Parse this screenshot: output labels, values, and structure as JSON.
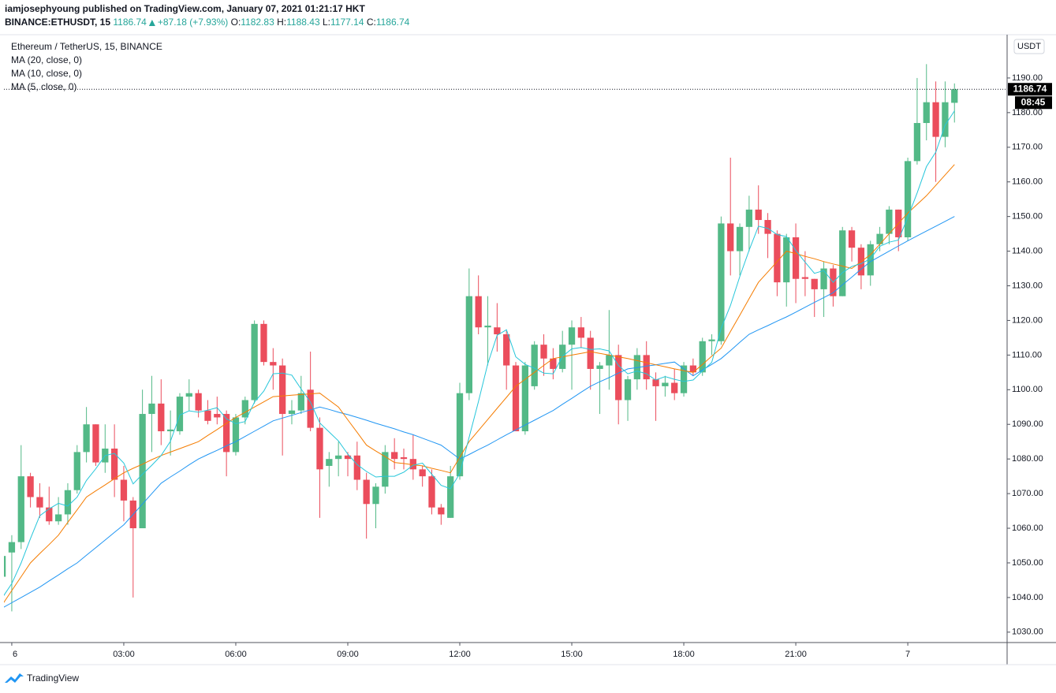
{
  "header": {
    "byline": "iamjosephyoung published on TradingView.com, January 07, 2021 01:21:17 HKT",
    "symbol": "BINANCE:ETHUSDT, 15",
    "change": "+87.18 (+7.93%)",
    "ohlc_labels": [
      "O:",
      "H:",
      "L:",
      "C:"
    ]
  },
  "footer": {
    "brand": "TradingView"
  },
  "chart_data": {
    "type": "candlestick",
    "title": "Ethereum / TetherUS, 15, BINANCE",
    "currency": "USDT",
    "countdown": "08:45",
    "up_color": "#53b987",
    "down_color": "#eb4d5c",
    "grid": false,
    "x": [
      -0.25,
      0,
      0.25,
      0.5,
      0.75,
      1,
      1.25,
      1.5,
      1.75,
      2,
      2.25,
      2.5,
      2.75,
      3,
      3.25,
      3.5,
      3.75,
      4,
      4.25,
      4.5,
      4.75,
      5,
      5.25,
      5.5,
      5.75,
      6,
      6.25,
      6.5,
      6.75,
      7,
      7.25,
      7.5,
      7.75,
      8,
      8.25,
      8.5,
      8.75,
      9,
      9.25,
      9.5,
      9.75,
      10,
      10.25,
      10.5,
      10.75,
      11,
      11.25,
      11.5,
      11.75,
      12,
      12.25,
      12.5,
      12.75,
      13,
      13.25,
      13.5,
      13.75,
      14,
      14.25,
      14.5,
      14.75,
      15,
      15.25,
      15.5,
      15.75,
      16,
      16.25,
      16.5,
      16.75,
      17,
      17.25,
      17.5,
      17.75,
      18,
      18.25,
      18.5,
      18.75,
      19,
      19.25,
      19.5,
      19.75,
      20,
      20.25,
      20.5,
      20.75,
      21,
      21.25,
      21.5,
      21.75,
      22,
      22.25,
      22.5,
      22.75,
      23,
      23.25,
      23.5,
      23.75,
      24,
      24.25,
      24.5,
      24.75,
      25,
      25.25
    ],
    "open": [
      1046,
      1053,
      1056,
      1075,
      1069,
      1066,
      1062,
      1064,
      1071,
      1082,
      1090,
      1079,
      1083,
      1074,
      1068,
      1060,
      1093,
      1096,
      1088,
      1088,
      1098,
      1099,
      1094,
      1093,
      1093,
      1082,
      1092,
      1097,
      1119,
      1108,
      1107,
      1093,
      1094,
      1100,
      1089,
      1078,
      1080,
      1081,
      1081,
      1074,
      1067,
      1072,
      1082,
      1080.5,
      1080,
      1077,
      1075,
      1066,
      1063,
      1075,
      1099,
      1127,
      1118,
      1118,
      1116,
      1107,
      1088,
      1101,
      1113,
      1109,
      1106,
      1113,
      1118,
      1115,
      1106,
      1107,
      1110,
      1097,
      1103,
      1110,
      1103,
      1101,
      1102,
      1099,
      1107,
      1105,
      1114,
      1114,
      1148,
      1140,
      1147,
      1152,
      1149,
      1145,
      1131,
      1144,
      1132.5,
      1132,
      1129,
      1135,
      1127,
      1146,
      1141,
      1133,
      1142,
      1145,
      1152,
      1144,
      1166,
      1177,
      1183,
      1173,
      1182.83
    ],
    "high": [
      1054,
      1058,
      1084,
      1076,
      1073,
      1072,
      1069,
      1073,
      1084,
      1095,
      1090,
      1090,
      1090,
      1078,
      1069,
      1100,
      1104,
      1103,
      1094,
      1099,
      1103,
      1100,
      1097,
      1098,
      1094,
      1093,
      1098,
      1120,
      1120,
      1112,
      1109,
      1097,
      1104,
      1111,
      1092,
      1082,
      1085,
      1082,
      1085,
      1076,
      1073,
      1084,
      1086,
      1083,
      1087,
      1078,
      1077,
      1067,
      1078,
      1102,
      1135,
      1133,
      1127,
      1125,
      1117,
      1108,
      1108,
      1114,
      1116,
      1112,
      1117,
      1120,
      1121,
      1117,
      1108,
      1123,
      1113,
      1104,
      1112,
      1114,
      1105,
      1104,
      1106,
      1108,
      1109,
      1115,
      1116,
      1150,
      1167,
      1148,
      1156,
      1159,
      1151,
      1146,
      1145,
      1148,
      1140,
      1132,
      1137,
      1136,
      1147,
      1147,
      1142,
      1143,
      1147,
      1153,
      1152,
      1167,
      1190,
      1194,
      1189,
      1189,
      1188.43
    ],
    "low": [
      1038,
      1036,
      1054,
      1066,
      1063,
      1061,
      1061,
      1061,
      1070,
      1079,
      1078,
      1076,
      1069,
      1062,
      1040,
      1060,
      1082,
      1084,
      1081,
      1087,
      1094,
      1092,
      1090,
      1090,
      1075,
      1081,
      1090,
      1096,
      1107,
      1100,
      1081,
      1090,
      1093,
      1088,
      1063,
      1072,
      1075,
      1075,
      1071,
      1057,
      1060,
      1070,
      1077,
      1077,
      1074,
      1072,
      1064,
      1061,
      1063,
      1074,
      1097,
      1116,
      1107,
      1111,
      1100,
      1088,
      1087,
      1100,
      1104,
      1103,
      1105,
      1100,
      1112,
      1100,
      1093,
      1100,
      1090,
      1091,
      1100,
      1100,
      1091,
      1098,
      1097,
      1098,
      1104,
      1104,
      1110,
      1113,
      1133,
      1133,
      1140,
      1145,
      1138,
      1127,
      1124,
      1125,
      1127,
      1121,
      1121,
      1124,
      1127,
      1137,
      1129,
      1130,
      1140,
      1142,
      1140,
      1143,
      1165,
      1172,
      1160,
      1170,
      1177.14
    ],
    "close": [
      1052,
      1056,
      1075,
      1069,
      1066,
      1062,
      1064,
      1071,
      1082,
      1090,
      1079,
      1083,
      1074,
      1068,
      1060,
      1093,
      1096,
      1088,
      1088.5,
      1098,
      1099,
      1094,
      1091,
      1092,
      1082,
      1092,
      1097,
      1119,
      1108,
      1107,
      1093,
      1094,
      1099,
      1089,
      1077,
      1080,
      1081,
      1080,
      1074,
      1067,
      1072,
      1082,
      1080,
      1080,
      1077,
      1075,
      1066,
      1064,
      1075,
      1099,
      1127,
      1118,
      1118.5,
      1116,
      1107,
      1088,
      1107,
      1113,
      1109,
      1106,
      1113,
      1118,
      1115,
      1106,
      1107,
      1110,
      1097,
      1103,
      1110,
      1103,
      1101,
      1102,
      1099,
      1107,
      1105,
      1114,
      1114.5,
      1148,
      1140,
      1147,
      1152,
      1149,
      1145,
      1131,
      1144,
      1132,
      1132,
      1129,
      1135,
      1127,
      1146,
      1141,
      1133,
      1142,
      1145,
      1152,
      1144,
      1166,
      1177,
      1183,
      1173,
      1183,
      1186.74
    ],
    "series": [
      {
        "name": "MA (20, close, 0)",
        "color": "#2196f3",
        "values": [
          1037,
          1038.5,
          1040,
          1041.5,
          1043,
          1044.8,
          1046.5,
          1048.3,
          1050,
          1052.2,
          1054.4,
          1056.6,
          1058.8,
          1061,
          1064,
          1067,
          1070,
          1073,
          1074.8,
          1076.5,
          1078.3,
          1080,
          1081.3,
          1082.5,
          1083.8,
          1085,
          1086.5,
          1088,
          1089.5,
          1091,
          1091.8,
          1092.6,
          1093.4,
          1094.2,
          1095,
          1094.3,
          1093.5,
          1092.8,
          1092,
          1091.2,
          1090.3,
          1089.5,
          1088.7,
          1087.8,
          1087,
          1086,
          1085,
          1084,
          1082,
          1080,
          1081.3,
          1082.7,
          1084,
          1085.5,
          1087,
          1088.4,
          1089.8,
          1091.2,
          1092.6,
          1094,
          1095.8,
          1097.5,
          1099.3,
          1101,
          1102.3,
          1103.5,
          1104.8,
          1106,
          1106.4,
          1106.8,
          1107.2,
          1107.6,
          1108,
          1106,
          1104,
          1105.7,
          1107.3,
          1109,
          1111.3,
          1113.7,
          1116,
          1117.3,
          1118.5,
          1119.8,
          1121,
          1122.4,
          1123.8,
          1125.2,
          1126.6,
          1128,
          1130.3,
          1132.5,
          1134.8,
          1137,
          1138.5,
          1140,
          1141.5,
          1143,
          1144.4,
          1145.8,
          1147.2,
          1148.6,
          1150
        ]
      },
      {
        "name": "MA (10, close, 0)",
        "color": "#f57c00",
        "values": [
          1038,
          1042,
          1046,
          1050,
          1052.7,
          1055.3,
          1058,
          1061.7,
          1065.3,
          1069,
          1070.8,
          1072.5,
          1074.3,
          1076,
          1077.3,
          1078.5,
          1079.8,
          1081,
          1082,
          1083,
          1084,
          1085,
          1086.8,
          1088.5,
          1090.3,
          1092,
          1093.5,
          1095,
          1096.5,
          1098,
          1098.2,
          1098.4,
          1098.6,
          1098.8,
          1099,
          1097,
          1095,
          1091.3,
          1087.7,
          1084,
          1082.3,
          1080.7,
          1079,
          1078.7,
          1078.3,
          1078,
          1077.3,
          1076.7,
          1076,
          1080.5,
          1085,
          1088.2,
          1091.4,
          1094.6,
          1097.8,
          1101,
          1103,
          1105,
          1107,
          1109,
          1109.5,
          1110,
          1110.5,
          1111,
          1110.5,
          1110,
          1109.5,
          1109,
          1108.4,
          1107.8,
          1107.2,
          1106.6,
          1106,
          1105.5,
          1105,
          1107.3,
          1109.7,
          1112,
          1116.8,
          1121.5,
          1126.3,
          1131,
          1134,
          1137,
          1140,
          1139.3,
          1138.5,
          1137.8,
          1137,
          1136.3,
          1135.7,
          1135,
          1137,
          1139,
          1142,
          1145,
          1148,
          1151,
          1153.5,
          1156,
          1159,
          1162,
          1165
        ]
      },
      {
        "name": "MA (5, close, 0)",
        "color": "#26c6da",
        "values": [
          1040,
          1044,
          1050,
          1057,
          1063.6,
          1065.6,
          1067.2,
          1066.4,
          1069,
          1073.8,
          1077.2,
          1081,
          1081.6,
          1078.8,
          1072.8,
          1075.6,
          1078.2,
          1081,
          1085.1,
          1092.7,
          1093.9,
          1093.5,
          1094.1,
          1094.8,
          1091.6,
          1090.2,
          1090.8,
          1096.4,
          1099.6,
          1104.6,
          1104.8,
          1104.2,
          1100.2,
          1096.4,
          1090.4,
          1087.8,
          1085.2,
          1081.4,
          1078.4,
          1076.4,
          1074.8,
          1075,
          1075,
          1076.2,
          1078.2,
          1078.8,
          1075.6,
          1072.4,
          1071.4,
          1075.8,
          1086.2,
          1096.6,
          1107.5,
          1115.7,
          1117.3,
          1109.5,
          1107.3,
          1106.2,
          1104.8,
          1104.6,
          1109.6,
          1111.8,
          1112.2,
          1111.6,
          1111.8,
          1111.2,
          1107,
          1104.6,
          1105.4,
          1104.6,
          1102.8,
          1103.8,
          1103,
          1102.4,
          1102.8,
          1105.4,
          1107.9,
          1117.7,
          1124.3,
          1132.7,
          1140.3,
          1147.2,
          1146.6,
          1144.8,
          1144.2,
          1140.2,
          1136.8,
          1133.6,
          1134.4,
          1131,
          1133.8,
          1135.6,
          1136.4,
          1137.8,
          1141.4,
          1142.6,
          1143.2,
          1149.8,
          1156.8,
          1164.4,
          1168.6,
          1176.4,
          1180.5
        ]
      }
    ],
    "xlim": [
      -0.21,
      26.66
    ],
    "xticks": [
      {
        "value": 0,
        "label": "6"
      },
      {
        "value": 3,
        "label": "03:00"
      },
      {
        "value": 6,
        "label": "06:00"
      },
      {
        "value": 9,
        "label": "09:00"
      },
      {
        "value": 12,
        "label": "12:00"
      },
      {
        "value": 15,
        "label": "15:00"
      },
      {
        "value": 18,
        "label": "18:00"
      },
      {
        "value": 21,
        "label": "21:00"
      },
      {
        "value": 24,
        "label": "7"
      }
    ],
    "ylim": [
      1027,
      1202.5
    ],
    "yticks": [
      {
        "value": 1030,
        "label": "1030.00"
      },
      {
        "value": 1040,
        "label": "1040.00"
      },
      {
        "value": 1050,
        "label": "1050.00"
      },
      {
        "value": 1060,
        "label": "1060.00"
      },
      {
        "value": 1070,
        "label": "1070.00"
      },
      {
        "value": 1080,
        "label": "1080.00"
      },
      {
        "value": 1090,
        "label": "1090.00"
      },
      {
        "value": 1100,
        "label": "1100.00"
      },
      {
        "value": 1110,
        "label": "1110.00"
      },
      {
        "value": 1120,
        "label": "1120.00"
      },
      {
        "value": 1130,
        "label": "1130.00"
      },
      {
        "value": 1140,
        "label": "1140.00"
      },
      {
        "value": 1150,
        "label": "1150.00"
      },
      {
        "value": 1160,
        "label": "1160.00"
      },
      {
        "value": 1170,
        "label": "1170.00"
      },
      {
        "value": 1180,
        "label": "1180.00"
      },
      {
        "value": 1190,
        "label": "1190.00"
      }
    ]
  }
}
